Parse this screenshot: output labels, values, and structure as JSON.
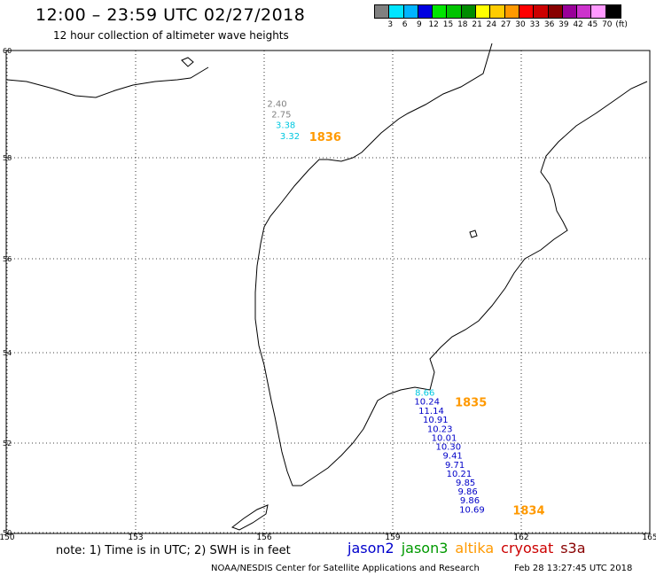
{
  "header": {
    "title": "12:00 – 23:59 UTC 02/27/2018",
    "subtitle": "12 hour collection of altimeter wave heights"
  },
  "legend": {
    "colors": [
      "#808080",
      "#00e5ff",
      "#00b4ff",
      "#0000e0",
      "#00e600",
      "#00c400",
      "#008c00",
      "#ffff00",
      "#ffcc00",
      "#ff9900",
      "#ff0000",
      "#cc0000",
      "#880000",
      "#990099",
      "#cc33cc",
      "#ff99ff",
      "#000000"
    ],
    "labels": [
      "3",
      "6",
      "9",
      "12",
      "15",
      "18",
      "21",
      "24",
      "27",
      "30",
      "33",
      "36",
      "39",
      "42",
      "45",
      "70",
      "(ft)"
    ]
  },
  "map": {
    "lon_ticks": [
      "150",
      "153",
      "156",
      "159",
      "162",
      "165"
    ],
    "lat_ticks": [
      "60",
      "58",
      "56",
      "54",
      "52",
      "50"
    ],
    "passes": [
      {
        "id": "1836",
        "color": "#ff9900",
        "points": [
          {
            "lon": 156.3,
            "lat": 58.95,
            "val": "2.40",
            "color": "#808080"
          },
          {
            "lon": 156.4,
            "lat": 58.75,
            "val": "2.75",
            "color": "#808080"
          },
          {
            "lon": 156.5,
            "lat": 58.55,
            "val": "3.38",
            "color": "#00c8e0"
          },
          {
            "lon": 156.6,
            "lat": 58.35,
            "val": "3.32",
            "color": "#00c8e0"
          }
        ],
        "label": {
          "lon": 157.05,
          "lat": 58.35
        }
      },
      {
        "id": "1835",
        "color": "#ff9900",
        "points": [
          {
            "lon": 159.75,
            "lat": 53.05,
            "val": "8.66",
            "color": "#00c8e0"
          },
          {
            "lon": 159.8,
            "lat": 52.85,
            "val": "10.24",
            "color": "#0000c8"
          },
          {
            "lon": 159.9,
            "lat": 52.65,
            "val": "11.14",
            "color": "#0000c8"
          },
          {
            "lon": 160.0,
            "lat": 52.45,
            "val": "10.91",
            "color": "#0000c8"
          },
          {
            "lon": 160.1,
            "lat": 52.25,
            "val": "10.23",
            "color": "#0000c8"
          },
          {
            "lon": 160.2,
            "lat": 52.05,
            "val": "10.01",
            "color": "#0000c8"
          },
          {
            "lon": 160.3,
            "lat": 51.85,
            "val": "10.30",
            "color": "#0000c8"
          },
          {
            "lon": 160.4,
            "lat": 51.65,
            "val": "9.41",
            "color": "#0000c8"
          },
          {
            "lon": 160.45,
            "lat": 51.45,
            "val": "9.71",
            "color": "#0000c8"
          },
          {
            "lon": 160.55,
            "lat": 51.25,
            "val": "10.21",
            "color": "#0000c8"
          },
          {
            "lon": 160.7,
            "lat": 51.05,
            "val": "9.85",
            "color": "#0000c8"
          },
          {
            "lon": 160.75,
            "lat": 50.85,
            "val": "9.86",
            "color": "#0000c8"
          },
          {
            "lon": 160.8,
            "lat": 50.65,
            "val": "9.86",
            "color": "#0000c8"
          },
          {
            "lon": 160.85,
            "lat": 50.45,
            "val": "10.69",
            "color": "#0000c8"
          }
        ],
        "label": {
          "lon": 160.45,
          "lat": 52.85
        }
      },
      {
        "id": "1834",
        "color": "#ff9900",
        "points": [],
        "label": {
          "lon": 161.8,
          "lat": 50.45
        }
      }
    ]
  },
  "footer": {
    "note": "note: 1) Time is in UTC;  2) SWH is in feet",
    "satellites": [
      {
        "name": "jason2",
        "color": "#0000cc"
      },
      {
        "name": "jason3",
        "color": "#009900"
      },
      {
        "name": "altika",
        "color": "#ff9900"
      },
      {
        "name": "cryosat",
        "color": "#cc0000"
      },
      {
        "name": "s3a",
        "color": "#880000"
      }
    ],
    "credit": "NOAA/NESDIS Center for Satellite Applications and Research",
    "timestamp": "Feb 28 13:27:45 UTC 2018"
  }
}
